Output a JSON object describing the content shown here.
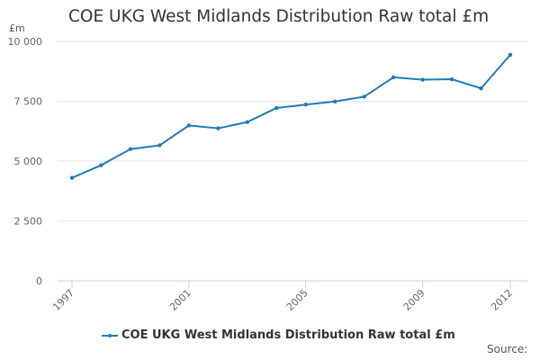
{
  "chart_title": "COE UKG West Midlands Distribution Raw total £m",
  "unit_label": "£m",
  "source_label": "Source:",
  "colors": {
    "series": "#1f7bb6",
    "grid": "#e6e6e6",
    "axis": "#c0d0e0",
    "text": "#333333",
    "muted": "#666666"
  },
  "chart_data": {
    "type": "line",
    "title": "COE UKG West Midlands Distribution Raw total £m",
    "xlabel": "",
    "ylabel": "£m",
    "x": [
      1997,
      1998,
      1999,
      2000,
      2001,
      2002,
      2003,
      2004,
      2005,
      2006,
      2007,
      2008,
      2009,
      2010,
      2011,
      2012
    ],
    "xtick_labels": [
      "1997",
      "2001",
      "2005",
      "2009",
      "2012"
    ],
    "xtick_values": [
      1997,
      2001,
      2005,
      2009,
      2012
    ],
    "ylim": [
      0,
      10000
    ],
    "yticks": [
      0,
      2500,
      5000,
      7500,
      10000
    ],
    "ytick_labels": [
      "0",
      "2 500",
      "5 000",
      "7 500",
      "10 000"
    ],
    "grid": true,
    "legend_position": "bottom",
    "series": [
      {
        "name": "COE UKG West Midlands Distribution Raw total £m",
        "values": [
          4300,
          4830,
          5500,
          5660,
          6490,
          6370,
          6630,
          7220,
          7360,
          7490,
          7690,
          8500,
          8400,
          8420,
          8040,
          9440
        ]
      }
    ]
  }
}
